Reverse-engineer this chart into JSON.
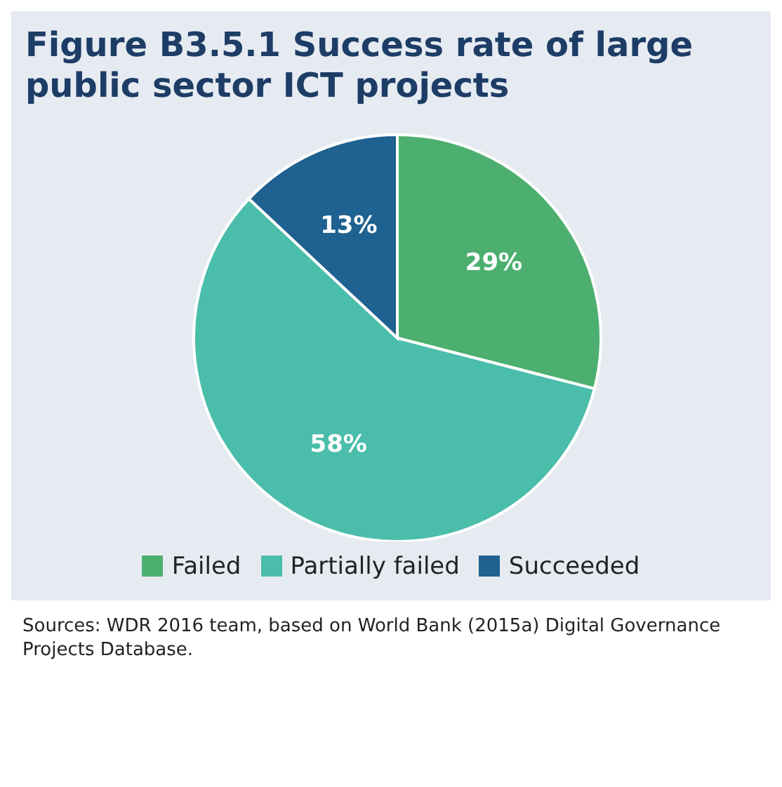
{
  "chart_data": {
    "type": "pie",
    "title": "Figure B3.5.1 Success rate of large public sector ICT projects",
    "categories": [
      "Failed",
      "Partially failed",
      "Succeeded"
    ],
    "values": [
      29,
      58,
      13
    ],
    "colors": [
      "#4caf6f",
      "#4bbdab",
      "#1f6190"
    ],
    "value_labels": [
      "29%",
      "58%",
      "13%"
    ],
    "legend": "bottom",
    "annotations": [
      "Sources: WDR 2016 team, based on World Bank (2015a) Digital Governance Projects Database."
    ]
  }
}
